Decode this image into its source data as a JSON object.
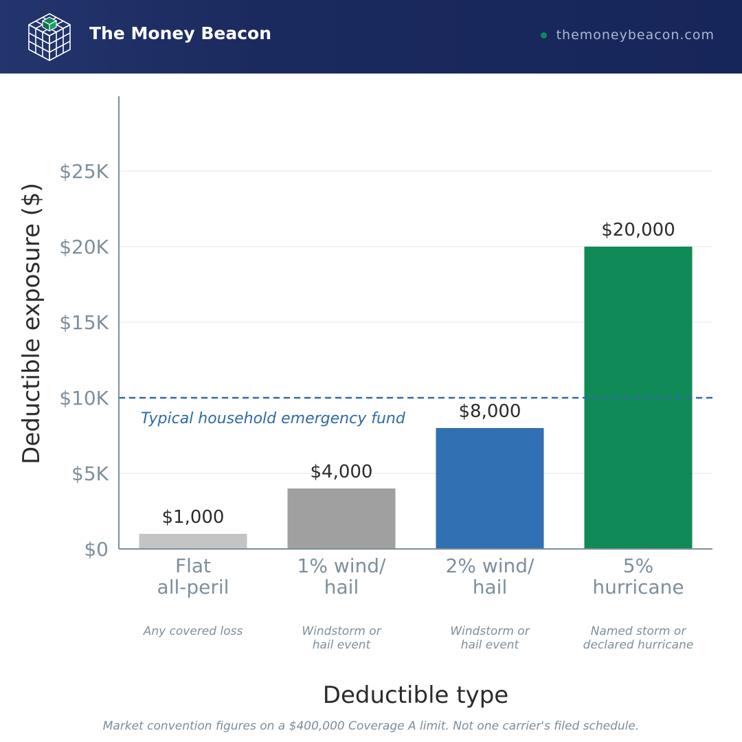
{
  "header": {
    "brand": "The Money Beacon",
    "website": "themoneybeacon.com",
    "logo_icon": "cube-grid-logo-icon",
    "status_dot_color": "#12875a"
  },
  "footnote": "Market convention figures on a $400,000 Coverage A limit. Not one carrier's filed schedule.",
  "chart_data": {
    "type": "bar",
    "xlabel": "Deductible type",
    "ylabel": "Deductible exposure ($)",
    "ylim": [
      0,
      30000
    ],
    "yticks": [
      0,
      5000,
      10000,
      15000,
      20000,
      25000
    ],
    "ytick_labels": [
      "$0",
      "$5K",
      "$10K",
      "$15K",
      "$20K",
      "$25K"
    ],
    "grid": true,
    "categories": [
      {
        "label_lines": [
          "Flat",
          "all-peril"
        ],
        "sublabel_lines": [
          "Any covered loss"
        ]
      },
      {
        "label_lines": [
          "1% wind/",
          "hail"
        ],
        "sublabel_lines": [
          "Windstorm or",
          "hail event"
        ]
      },
      {
        "label_lines": [
          "2% wind/",
          "hail"
        ],
        "sublabel_lines": [
          "Windstorm or",
          "hail event"
        ]
      },
      {
        "label_lines": [
          "5%",
          "hurricane"
        ],
        "sublabel_lines": [
          "Named storm or",
          "declared hurricane"
        ]
      }
    ],
    "values": [
      1000,
      4000,
      8000,
      20000
    ],
    "value_labels": [
      "$1,000",
      "$4,000",
      "$8,000",
      "$20,000"
    ],
    "colors": [
      "#c4c4c4",
      "#a0a0a0",
      "#3070b3",
      "#108a56"
    ],
    "reference_line": {
      "value": 10000,
      "label": "Typical household emergency fund",
      "color": "#2d6aa6",
      "style": "dashed"
    },
    "colors_theme": {
      "axis": "#7d8f9b",
      "tick_text": "#7d8f9b",
      "grid": "#e3e6e9",
      "value_text": "#2b2b2b",
      "title_text": "#2b2b2b"
    }
  }
}
